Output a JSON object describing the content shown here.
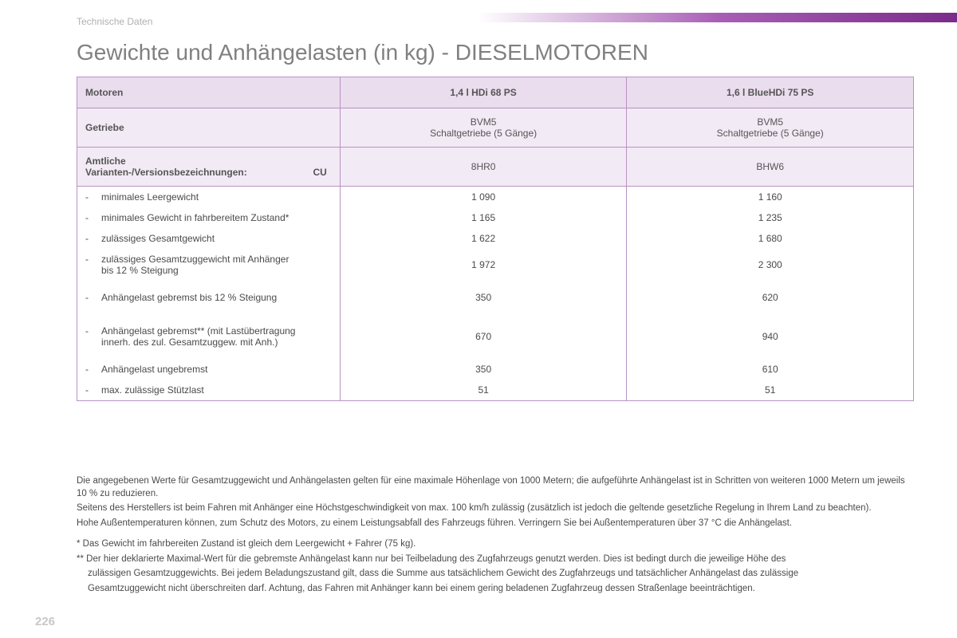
{
  "section_label": "Technische Daten",
  "title": "Gewichte und Anhängelasten (in kg) - DIESELMOTOREN",
  "page_number": "226",
  "table": {
    "header": {
      "label": "Motoren",
      "col1": "1,4 l HDi 68 PS",
      "col2": "1,6 l BlueHDi 75 PS"
    },
    "gearbox": {
      "label": "Getriebe",
      "col1_line1": "BVM5",
      "col1_line2": "Schaltgetriebe (5 Gänge)",
      "col2_line1": "BVM5",
      "col2_line2": "Schaltgetriebe (5 Gänge)"
    },
    "variant": {
      "label_line1": "Amtliche",
      "label_line2": "Varianten-/Versionsbezeichnungen:",
      "cu": "CU",
      "col1": "8HR0",
      "col2": "BHW6"
    },
    "rows": [
      {
        "label": "minimales Leergewicht",
        "c1": "1 090",
        "c2": "1 160"
      },
      {
        "label": "minimales Gewicht in fahrbereitem Zustand*",
        "c1": "1 165",
        "c2": "1 235"
      },
      {
        "label": "zulässiges Gesamtgewicht",
        "c1": "1 622",
        "c2": "1 680"
      },
      {
        "label": "zulässiges Gesamtzuggewicht mit Anhänger\nbis 12 % Steigung",
        "c1": "1 972",
        "c2": "2 300"
      },
      {
        "label": "Anhängelast gebremst bis 12 % Steigung",
        "c1": "350",
        "c2": "620",
        "pad": true
      },
      {
        "label": "Anhängelast gebremst** (mit Lastübertragung\ninnerh. des zul. Gesamtzuggew. mit Anh.)",
        "c1": "670",
        "c2": "940",
        "pad": true
      },
      {
        "label": "Anhängelast ungebremst",
        "c1": "350",
        "c2": "610"
      },
      {
        "label": "max. zulässige Stützlast",
        "c1": "51",
        "c2": "51"
      }
    ]
  },
  "notes": {
    "p1": "Die angegebenen Werte für Gesamtzuggewicht und Anhängelasten gelten für eine maximale Höhenlage von 1000 Metern; die aufgeführte Anhängelast ist in Schritten von weiteren 1000 Metern um jeweils 10 % zu reduzieren.",
    "p2": "Seitens des Herstellers ist beim Fahren mit Anhänger eine Höchstgeschwindigkeit von max. 100 km/h zulässig (zusätzlich ist jedoch die geltende gesetzliche Regelung in Ihrem Land zu beachten).",
    "p3": "Hohe Außentemperaturen können, zum Schutz des Motors, zu einem Leistungsabfall des Fahrzeugs führen. Verringern Sie bei Außentemperaturen über 37 °C die Anhängelast.",
    "p4": "* Das Gewicht im fahrbereiten Zustand ist gleich dem Leergewicht + Fahrer (75 kg).",
    "p5a": "** Der hier deklarierte Maximal-Wert für die gebremste Anhängelast kann nur bei Teilbeladung des Zugfahrzeugs genutzt werden. Dies ist bedingt durch die jeweilige Höhe des",
    "p5b": "zulässigen Gesamtzuggewichts. Bei jedem Beladungszustand gilt, dass die Summe aus tatsächlichem Gewicht des Zugfahrzeugs und tatsächlicher Anhängelast das zulässige",
    "p5c": "Gesamtzuggewicht nicht überschreiten darf. Achtung, das Fahren mit Anhänger kann bei einem gering beladenen Zugfahrzeug dessen Straßenlage beeinträchtigen."
  }
}
